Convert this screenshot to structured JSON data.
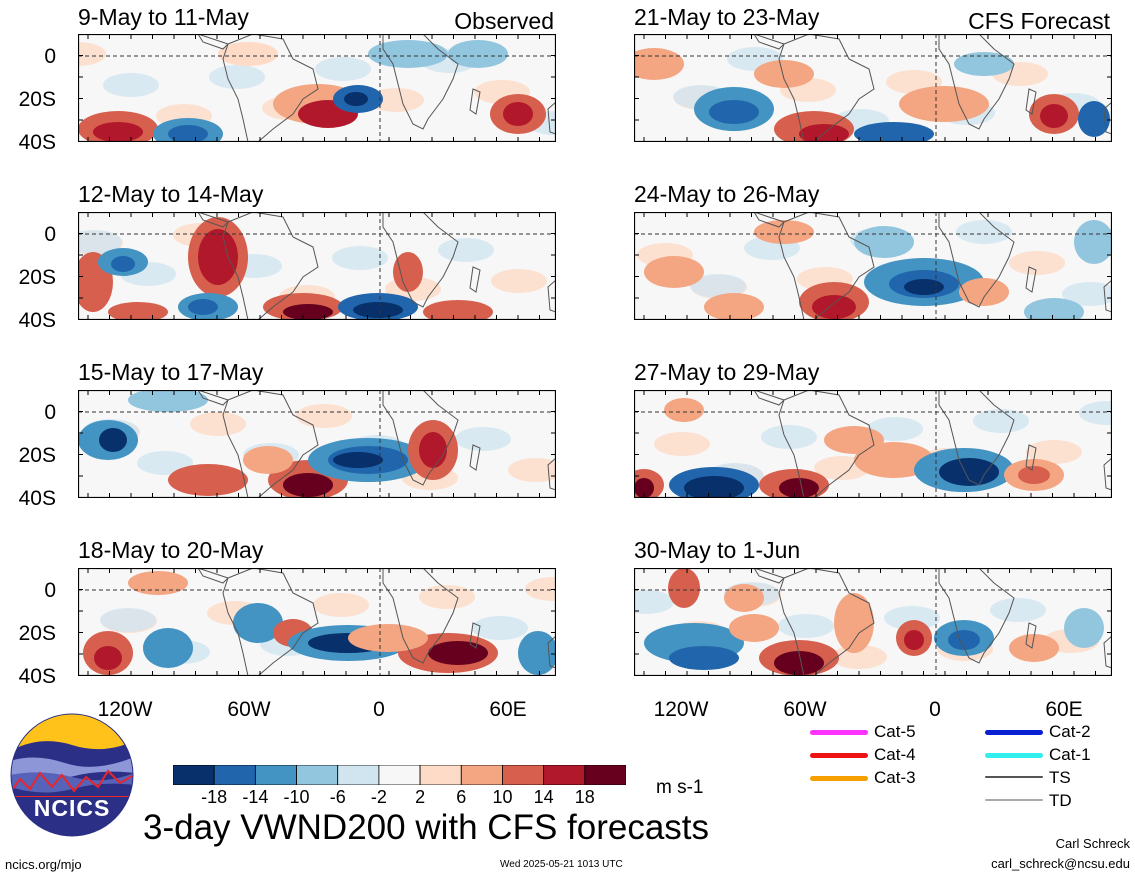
{
  "panels": [
    {
      "id": "p1",
      "title": "9-May to 11-May",
      "label": "Observed",
      "col": 0,
      "row": 0
    },
    {
      "id": "p2",
      "title": "12-May to 14-May",
      "label": "",
      "col": 0,
      "row": 1
    },
    {
      "id": "p3",
      "title": "15-May to 17-May",
      "label": "",
      "col": 0,
      "row": 2
    },
    {
      "id": "p4",
      "title": "18-May to 20-May",
      "label": "",
      "col": 0,
      "row": 3
    },
    {
      "id": "p5",
      "title": "21-May to 23-May",
      "label": "CFS Forecast",
      "col": 1,
      "row": 0
    },
    {
      "id": "p6",
      "title": "24-May to 26-May",
      "label": "",
      "col": 1,
      "row": 1
    },
    {
      "id": "p7",
      "title": "27-May to 29-May",
      "label": "",
      "col": 1,
      "row": 2
    },
    {
      "id": "p8",
      "title": "30-May to 1-Jun",
      "label": "",
      "col": 1,
      "row": 3
    }
  ],
  "y_ticks": [
    "0",
    "20S",
    "40S"
  ],
  "x_ticks": [
    "120W",
    "60W",
    "0",
    "60E"
  ],
  "colorbar": {
    "colors": [
      "#08306b",
      "#2166ac",
      "#4393c3",
      "#92c5de",
      "#d1e5f0",
      "#f7f7f7",
      "#fddbc7",
      "#f4a582",
      "#d6604d",
      "#b2182b",
      "#67001f"
    ],
    "labels": [
      "-18",
      "-14",
      "-10",
      "-6",
      "-2",
      "2",
      "6",
      "10",
      "14",
      "18"
    ],
    "unit": "m s-1"
  },
  "legend": [
    {
      "label": "Cat-5",
      "color": "#ff33ff"
    },
    {
      "label": "Cat-4",
      "color": "#ee1111"
    },
    {
      "label": "Cat-3",
      "color": "#f5a000"
    },
    {
      "label": "Cat-2",
      "color": "#0a1ed2"
    },
    {
      "label": "Cat-1",
      "color": "#33eeee"
    },
    {
      "label": "TS",
      "color": "#555555"
    },
    {
      "label": "TD",
      "color": "#aaaaaa"
    }
  ],
  "logo": {
    "text": "NCICS"
  },
  "main_title": "3-day VWND200 with CFS forecasts",
  "author": "Carl Schreck",
  "email": "carl_schreck@ncsu.edu",
  "website": "ncics.org/mjo",
  "timestamp": "Wed 2025-05-21 1013 UTC"
}
